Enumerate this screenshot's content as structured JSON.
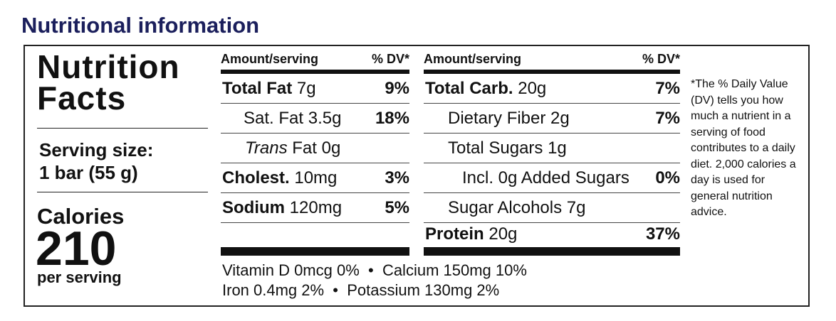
{
  "header": {
    "title": "Nutritional information"
  },
  "label": {
    "title_lines": [
      "Nutrition",
      "Facts"
    ],
    "serving": [
      "Serving size:",
      "1 bar (55 g)"
    ],
    "calories": {
      "label": "Calories",
      "value": "210",
      "unit": "per serving"
    },
    "left_table": {
      "headers": [
        "Amount/serving",
        "% DV*"
      ],
      "rows": [
        {
          "name": "Total Fat",
          "amount": "7g",
          "dv": "9%"
        },
        {
          "name": "Sat. Fat",
          "amount": "3.5g",
          "dv": "18%"
        },
        {
          "name": "Trans",
          "amount": "Fat 0g"
        },
        {
          "name": "Cholest.",
          "amount": "10mg",
          "dv": "3%"
        },
        {
          "name": "Sodium",
          "amount": "120mg",
          "dv": "5%"
        }
      ]
    },
    "right_table": {
      "headers": [
        "Amount/serving",
        "% DV*"
      ],
      "rows": [
        {
          "name": "Total Carb.",
          "amount": "20g",
          "dv": "7%"
        },
        {
          "name": "Dietary Fiber",
          "amount": "2g",
          "dv": "7%"
        },
        {
          "name": "Total Sugars",
          "amount": "1g"
        },
        {
          "name": "Incl. 0g Added Sugars",
          "dv": "0%"
        },
        {
          "name": "Sugar Alcohols",
          "amount": "7g"
        },
        {
          "name": "Protein",
          "amount": "20g",
          "dv": "37%"
        }
      ]
    },
    "vitamins": [
      [
        "Vitamin D 0mcg 0%",
        "Calcium 150mg 10%"
      ],
      [
        "Iron 0.4mg 2%",
        "Potassium 130mg 2%"
      ]
    ],
    "footnote": "*The % Daily Value (DV) tells you how much a nutrient in a serving of food contributes to a daily diet. 2,000 calories a day is used for general nutrition advice."
  }
}
